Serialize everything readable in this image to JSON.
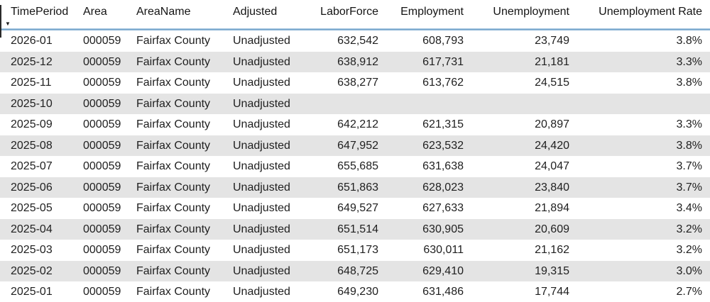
{
  "colors": {
    "background": "#ffffff",
    "alternate_row": "#e4e4e4",
    "text": "#1f1f1f",
    "header_rule_blue": "#78a7cd"
  },
  "icons": {
    "sort_descending": "▼"
  },
  "table": {
    "sorted_column": "TimePeriod",
    "sort_direction": "descending",
    "columns": [
      {
        "label": "TimePeriod",
        "align": "left"
      },
      {
        "label": "Area",
        "align": "left"
      },
      {
        "label": "AreaName",
        "align": "left"
      },
      {
        "label": "Adjusted",
        "align": "left"
      },
      {
        "label": "LaborForce",
        "align": "right"
      },
      {
        "label": "Employment",
        "align": "right"
      },
      {
        "label": "Unemployment",
        "align": "right"
      },
      {
        "label": "Unemployment Rate",
        "align": "right"
      }
    ],
    "rows": [
      [
        "2026-01",
        "000059",
        "Fairfax County",
        "Unadjusted",
        "632,542",
        "608,793",
        "23,749",
        "3.8%"
      ],
      [
        "2025-12",
        "000059",
        "Fairfax County",
        "Unadjusted",
        "638,912",
        "617,731",
        "21,181",
        "3.3%"
      ],
      [
        "2025-11",
        "000059",
        "Fairfax County",
        "Unadjusted",
        "638,277",
        "613,762",
        "24,515",
        "3.8%"
      ],
      [
        "2025-10",
        "000059",
        "Fairfax County",
        "Unadjusted",
        "",
        "",
        "",
        ""
      ],
      [
        "2025-09",
        "000059",
        "Fairfax County",
        "Unadjusted",
        "642,212",
        "621,315",
        "20,897",
        "3.3%"
      ],
      [
        "2025-08",
        "000059",
        "Fairfax County",
        "Unadjusted",
        "647,952",
        "623,532",
        "24,420",
        "3.8%"
      ],
      [
        "2025-07",
        "000059",
        "Fairfax County",
        "Unadjusted",
        "655,685",
        "631,638",
        "24,047",
        "3.7%"
      ],
      [
        "2025-06",
        "000059",
        "Fairfax County",
        "Unadjusted",
        "651,863",
        "628,023",
        "23,840",
        "3.7%"
      ],
      [
        "2025-05",
        "000059",
        "Fairfax County",
        "Unadjusted",
        "649,527",
        "627,633",
        "21,894",
        "3.4%"
      ],
      [
        "2025-04",
        "000059",
        "Fairfax County",
        "Unadjusted",
        "651,514",
        "630,905",
        "20,609",
        "3.2%"
      ],
      [
        "2025-03",
        "000059",
        "Fairfax County",
        "Unadjusted",
        "651,173",
        "630,011",
        "21,162",
        "3.2%"
      ],
      [
        "2025-02",
        "000059",
        "Fairfax County",
        "Unadjusted",
        "648,725",
        "629,410",
        "19,315",
        "3.0%"
      ],
      [
        "2025-01",
        "000059",
        "Fairfax County",
        "Unadjusted",
        "649,230",
        "631,486",
        "17,744",
        "2.7%"
      ]
    ]
  }
}
